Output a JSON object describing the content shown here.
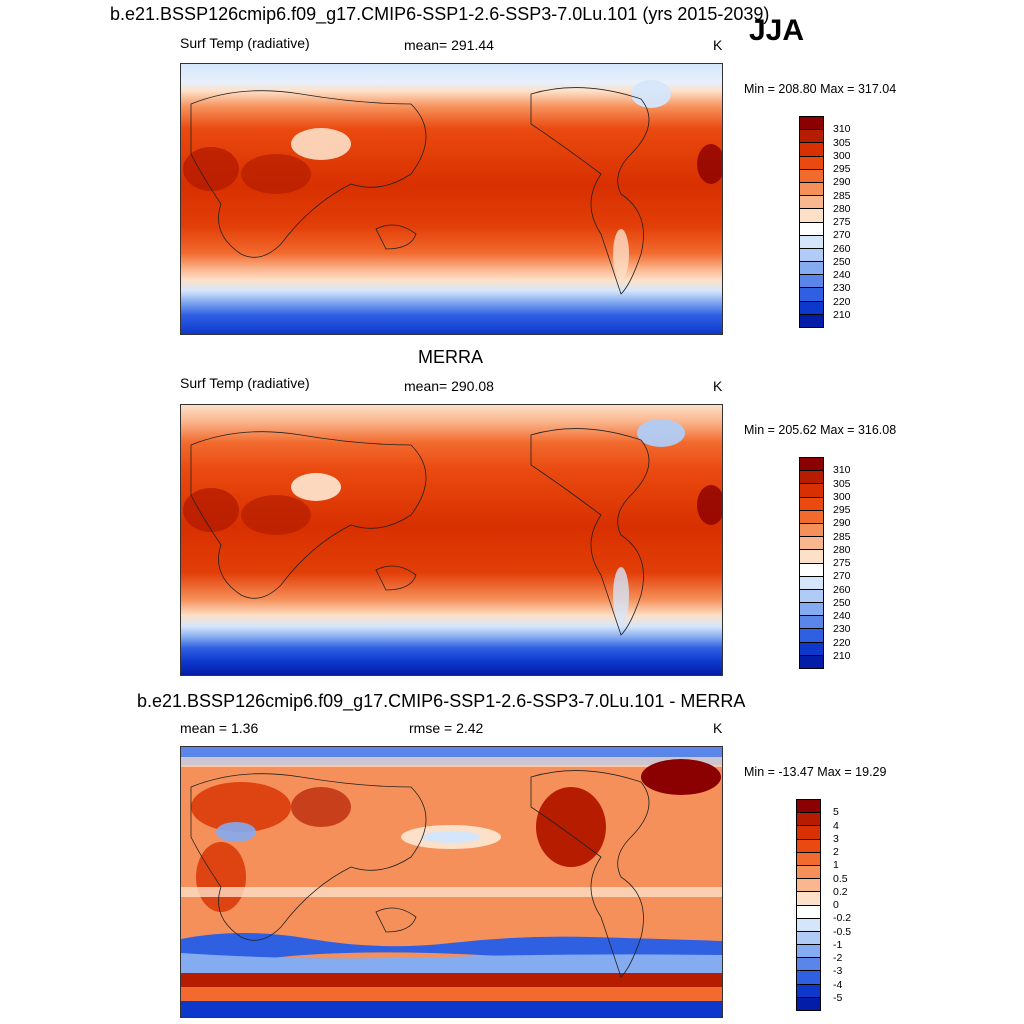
{
  "header": {
    "title": "b.e21.BSSP126cmip6.f09_g17.CMIP6-SSP1-2.6-SSP3-7.0Lu.101 (yrs 2015-2039)",
    "season": "JJA"
  },
  "panels": [
    {
      "id": "model",
      "variable": "Surf Temp (radiative)",
      "stat": "mean= 291.44",
      "units": "K",
      "minmax": "Min = 208.80 Max = 317.04",
      "colorbar": {
        "labels": [
          "310",
          "305",
          "300",
          "295",
          "290",
          "285",
          "280",
          "275",
          "270",
          "260",
          "250",
          "240",
          "230",
          "220",
          "210"
        ],
        "colors": [
          "#8b0000",
          "#b51c00",
          "#d83000",
          "#ea4a10",
          "#f26a2e",
          "#f6905a",
          "#fab68e",
          "#fde0c8",
          "#ffffff",
          "#d5e6fb",
          "#b0ccf6",
          "#85abf0",
          "#5a86ea",
          "#2f60e2",
          "#0e38cc",
          "#041da8"
        ]
      }
    },
    {
      "id": "obs",
      "title": "MERRA",
      "variable": "Surf Temp (radiative)",
      "stat": "mean= 290.08",
      "units": "K",
      "minmax": "Min = 205.62 Max = 316.08",
      "colorbar": {
        "labels": [
          "310",
          "305",
          "300",
          "295",
          "290",
          "285",
          "280",
          "275",
          "270",
          "260",
          "250",
          "240",
          "230",
          "220",
          "210"
        ],
        "colors": [
          "#8b0000",
          "#b51c00",
          "#d83000",
          "#ea4a10",
          "#f26a2e",
          "#f6905a",
          "#fab68e",
          "#fde0c8",
          "#ffffff",
          "#d5e6fb",
          "#b0ccf6",
          "#85abf0",
          "#5a86ea",
          "#2f60e2",
          "#0e38cc",
          "#041da8"
        ]
      }
    },
    {
      "id": "diff",
      "title": "b.e21.BSSP126cmip6.f09_g17.CMIP6-SSP1-2.6-SSP3-7.0Lu.101 - MERRA",
      "stat": "mean =   1.36",
      "stat2": "rmse =   2.42",
      "units": "K",
      "minmax": "Min = -13.47 Max =  19.29",
      "colorbar": {
        "labels": [
          "5",
          "4",
          "3",
          "2",
          "1",
          "0.5",
          "0.2",
          "0",
          "-0.2",
          "-0.5",
          "-1",
          "-2",
          "-3",
          "-4",
          "-5"
        ],
        "colors": [
          "#8b0000",
          "#b51c00",
          "#d83000",
          "#ea4a10",
          "#f26a2e",
          "#f6905a",
          "#fab68e",
          "#fde0c8",
          "#ffffff",
          "#d5e6fb",
          "#b0ccf6",
          "#85abf0",
          "#5a86ea",
          "#2f60e2",
          "#0e38cc",
          "#041da8"
        ]
      }
    }
  ]
}
